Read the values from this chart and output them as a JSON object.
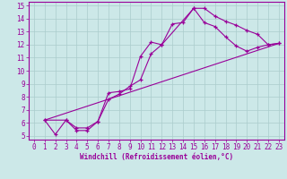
{
  "xlabel": "Windchill (Refroidissement éolien,°C)",
  "bg_color": "#cce8e8",
  "line_color": "#990099",
  "grid_color": "#aacccc",
  "xlim": [
    -0.5,
    23.5
  ],
  "ylim": [
    4.7,
    15.3
  ],
  "xticks": [
    0,
    1,
    2,
    3,
    4,
    5,
    6,
    7,
    8,
    9,
    10,
    11,
    12,
    13,
    14,
    15,
    16,
    17,
    18,
    19,
    20,
    21,
    22,
    23
  ],
  "yticks": [
    5,
    6,
    7,
    8,
    9,
    10,
    11,
    12,
    13,
    14,
    15
  ],
  "line1_x": [
    1,
    2,
    3,
    4,
    5,
    6,
    7,
    8,
    9,
    10,
    11,
    12,
    13,
    14,
    15,
    16,
    17,
    18,
    19,
    20,
    21,
    22,
    23
  ],
  "line1_y": [
    6.2,
    5.1,
    6.2,
    5.6,
    5.6,
    6.1,
    8.3,
    8.4,
    8.6,
    11.1,
    12.2,
    12.0,
    13.6,
    13.7,
    14.8,
    14.8,
    14.2,
    13.8,
    13.5,
    13.1,
    12.8,
    12.0,
    12.1
  ],
  "line2_x": [
    1,
    3,
    4,
    5,
    6,
    7,
    8,
    9,
    10,
    11,
    12,
    15,
    16,
    17,
    18,
    19,
    20,
    21,
    22,
    23
  ],
  "line2_y": [
    6.2,
    6.2,
    5.4,
    5.4,
    6.1,
    7.8,
    8.2,
    8.8,
    9.3,
    11.3,
    12.0,
    14.8,
    13.7,
    13.4,
    12.6,
    11.9,
    11.5,
    11.8,
    12.0,
    12.1
  ],
  "line3_x": [
    1,
    23
  ],
  "line3_y": [
    6.2,
    12.1
  ],
  "tick_fontsize": 5.5,
  "xlabel_fontsize": 5.5
}
